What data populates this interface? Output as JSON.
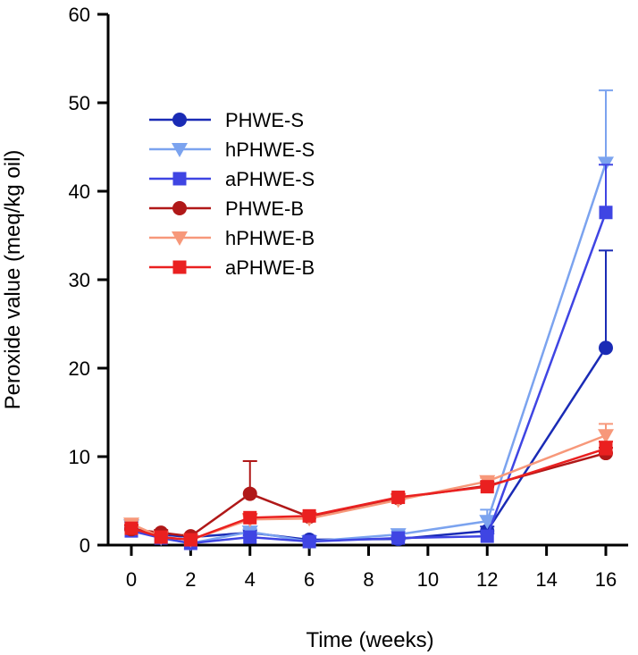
{
  "chart_data": {
    "type": "line",
    "title": "",
    "xlabel": "Time (weeks)",
    "ylabel": "Peroxide value (meq/kg oil)",
    "xlim": [
      -1,
      17
    ],
    "ylim": [
      0,
      60
    ],
    "xticks": [
      0,
      2,
      4,
      6,
      8,
      10,
      12,
      14,
      16
    ],
    "yticks": [
      0,
      10,
      20,
      30,
      40,
      50,
      60
    ],
    "grid": false,
    "legend_position": "top-left",
    "x": [
      0,
      1,
      2,
      4,
      6,
      9,
      12,
      16
    ],
    "series": [
      {
        "name": "PHWE-S",
        "color": "#1a2bb5",
        "marker": "circle",
        "values": [
          1.8,
          1.2,
          0.9,
          1.4,
          0.6,
          0.7,
          1.6,
          22.3
        ],
        "errors": [
          0.4,
          0.3,
          0.2,
          0.3,
          0.2,
          0.2,
          0.5,
          11.0
        ]
      },
      {
        "name": "hPHWE-S",
        "color": "#7ba3ef",
        "marker": "triangle-down",
        "values": [
          2.2,
          0.8,
          0.2,
          1.5,
          0.4,
          1.2,
          2.7,
          43.2
        ],
        "errors": [
          0.4,
          0.2,
          0.1,
          0.3,
          0.2,
          0.3,
          1.3,
          8.2
        ]
      },
      {
        "name": "aPHWE-S",
        "color": "#3f45e3",
        "marker": "square",
        "values": [
          1.6,
          0.8,
          0.2,
          0.9,
          0.4,
          0.8,
          1.0,
          37.6
        ],
        "errors": [
          0.3,
          0.2,
          0.1,
          0.2,
          0.2,
          0.2,
          0.3,
          5.4
        ]
      },
      {
        "name": "PHWE-B",
        "color": "#b01818",
        "marker": "circle",
        "values": [
          1.8,
          1.4,
          1.0,
          5.8,
          3.2,
          5.3,
          6.7,
          10.4
        ],
        "errors": [
          0.4,
          0.3,
          0.2,
          3.7,
          0.4,
          0.4,
          0.5,
          0.6
        ]
      },
      {
        "name": "hPHWE-B",
        "color": "#f7987a",
        "marker": "triangle-down",
        "values": [
          2.4,
          0.9,
          0.6,
          2.9,
          3.0,
          5.1,
          7.2,
          12.4
        ],
        "errors": [
          0.4,
          0.3,
          0.2,
          0.4,
          0.3,
          0.4,
          0.4,
          1.3
        ]
      },
      {
        "name": "aPHWE-B",
        "color": "#ea2020",
        "marker": "square",
        "values": [
          1.9,
          0.9,
          0.6,
          3.1,
          3.3,
          5.4,
          6.6,
          10.9
        ],
        "errors": [
          0.4,
          0.3,
          0.2,
          0.4,
          0.3,
          0.4,
          0.4,
          0.8
        ]
      }
    ]
  }
}
